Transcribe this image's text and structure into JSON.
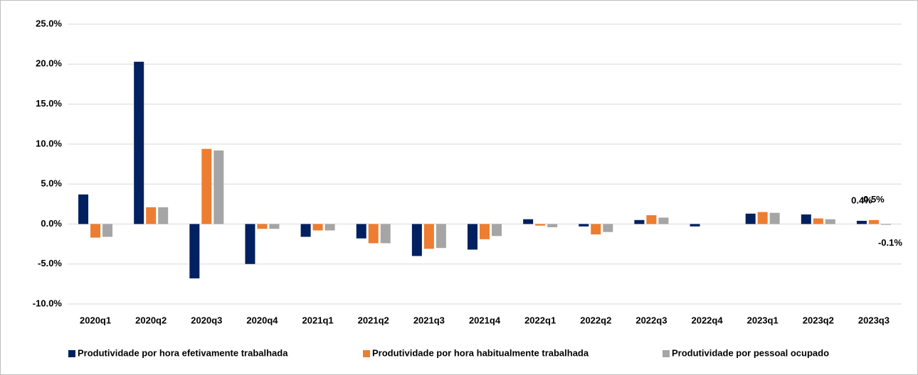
{
  "chart_data": {
    "type": "bar",
    "categories": [
      "2020q1",
      "2020q2",
      "2020q3",
      "2020q4",
      "2021q1",
      "2021q2",
      "2021q3",
      "2021q4",
      "2022q1",
      "2022q2",
      "2022q3",
      "2022q4",
      "2023q1",
      "2023q2",
      "2023q3"
    ],
    "series": [
      {
        "name": "Produtividade por hora efetivamente trabalhada",
        "color": "#002060",
        "values": [
          3.7,
          20.3,
          -6.8,
          -5.0,
          -1.6,
          -1.8,
          -4.0,
          -3.2,
          0.6,
          -0.3,
          0.5,
          -0.3,
          1.3,
          1.2,
          0.4
        ],
        "value_labels": [
          null,
          null,
          null,
          null,
          null,
          null,
          null,
          null,
          null,
          null,
          null,
          null,
          null,
          null,
          "0.4%"
        ]
      },
      {
        "name": "Produtividade por hora habitualmente trabalhada",
        "color": "#ed7d31",
        "values": [
          -1.7,
          2.1,
          9.4,
          -0.6,
          -0.8,
          -2.4,
          -3.1,
          -1.9,
          -0.2,
          -1.3,
          1.1,
          0,
          1.5,
          0.7,
          0.5
        ],
        "value_labels": [
          null,
          null,
          null,
          null,
          null,
          null,
          null,
          null,
          null,
          null,
          null,
          null,
          null,
          null,
          "0.5%"
        ]
      },
      {
        "name": "Produtividade por pessoal ocupado",
        "color": "#a5a5a5",
        "values": [
          -1.6,
          2.1,
          9.2,
          -0.6,
          -0.8,
          -2.4,
          -3.0,
          -1.5,
          -0.4,
          -1.0,
          0.8,
          0,
          1.4,
          0.6,
          -0.1
        ],
        "value_labels": [
          null,
          null,
          null,
          null,
          null,
          null,
          null,
          null,
          null,
          null,
          null,
          null,
          null,
          null,
          "-0.1%"
        ]
      }
    ],
    "ylim": [
      -10,
      25
    ],
    "yticks": [
      {
        "value": -10,
        "label": "-10.0%"
      },
      {
        "value": -5,
        "label": "-5.0%"
      },
      {
        "value": 0,
        "label": "0.0%"
      },
      {
        "value": 5,
        "label": "5.0%"
      },
      {
        "value": 10,
        "label": "10.0%"
      },
      {
        "value": 15,
        "label": "15.0%"
      },
      {
        "value": 20,
        "label": "20.0%"
      },
      {
        "value": 25,
        "label": "25.0%"
      }
    ],
    "grid": true,
    "legend": "bottom"
  }
}
